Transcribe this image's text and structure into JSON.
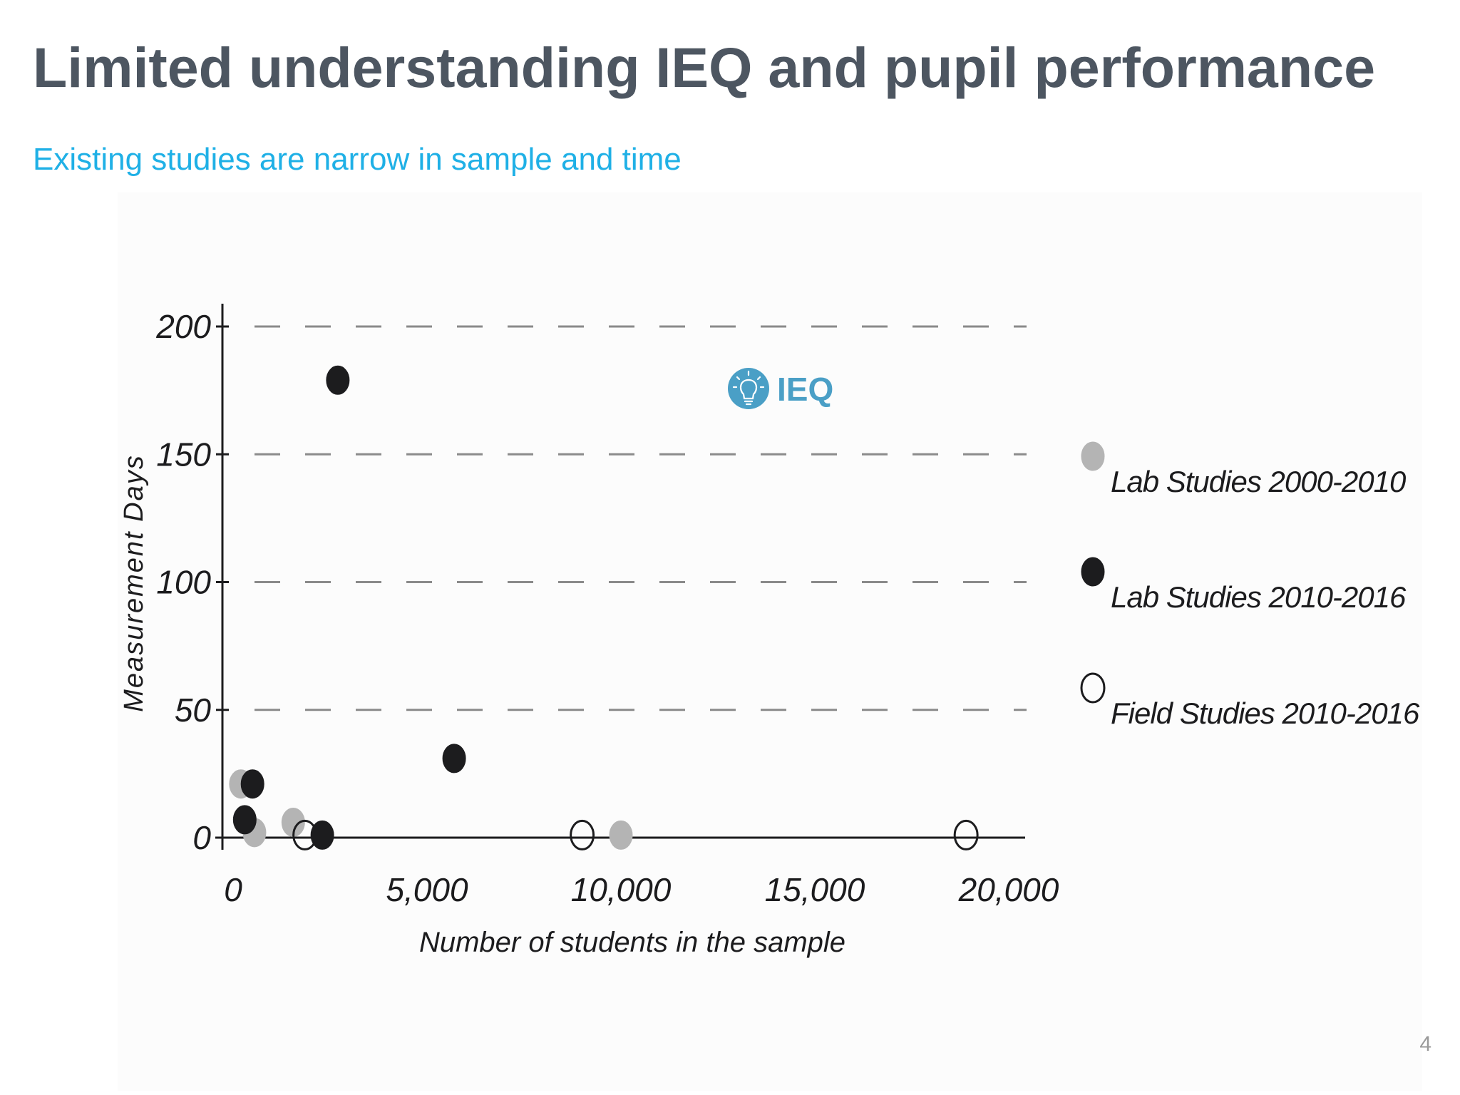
{
  "slide": {
    "title": "Limited understanding IEQ and pupil performance",
    "subtitle": "Existing studies are narrow in sample and time",
    "page_number": "4",
    "colors": {
      "title": "#4d5661",
      "subtitle": "#1fb0e6",
      "ieq_badge": "#4a9fc6"
    }
  },
  "badge": {
    "icon": "lightbulb-icon",
    "label": "IEQ"
  },
  "chart_data": {
    "type": "scatter",
    "xlabel": "Number of students in the sample",
    "ylabel": "Measurement Days",
    "xlim": [
      0,
      20000
    ],
    "ylim": [
      0,
      200
    ],
    "x_ticks": [
      "0",
      "5,000",
      "10,000",
      "15,000",
      "20,000"
    ],
    "x_tick_values": [
      0,
      5000,
      10000,
      15000,
      20000
    ],
    "y_ticks": [
      "0",
      "50",
      "100",
      "150",
      "200"
    ],
    "y_tick_values": [
      0,
      50,
      100,
      150,
      200
    ],
    "grid": "horizontal dashed",
    "legend_position": "right",
    "series": [
      {
        "name": "Lab Studies 2000-2010",
        "marker": "filled",
        "color": "#b4b4b4",
        "points": [
          {
            "x": 200,
            "y": 21
          },
          {
            "x": 550,
            "y": 2
          },
          {
            "x": 1550,
            "y": 6
          },
          {
            "x": 10000,
            "y": 1
          }
        ]
      },
      {
        "name": "Lab Studies 2010-2016",
        "marker": "filled",
        "color": "#1c1c1e",
        "points": [
          {
            "x": 2700,
            "y": 179
          },
          {
            "x": 5700,
            "y": 31
          },
          {
            "x": 500,
            "y": 21
          },
          {
            "x": 300,
            "y": 7
          },
          {
            "x": 2300,
            "y": 1
          }
        ]
      },
      {
        "name": "Field Studies 2010-2016",
        "marker": "open",
        "color": "#1c1c1e",
        "points": [
          {
            "x": 1850,
            "y": 1
          },
          {
            "x": 9000,
            "y": 1
          },
          {
            "x": 18900,
            "y": 1
          }
        ]
      }
    ]
  }
}
